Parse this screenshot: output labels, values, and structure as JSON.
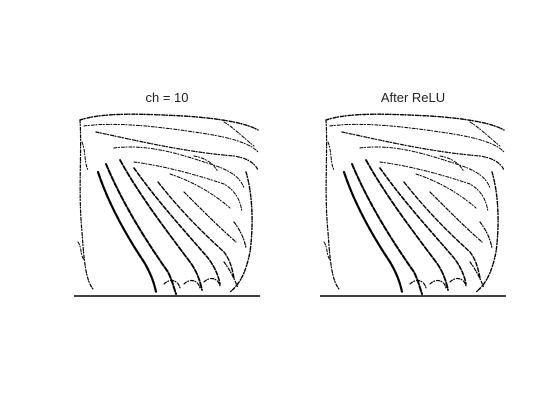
{
  "panels": [
    {
      "title": "ch = 10"
    },
    {
      "title": "After ReLU"
    }
  ],
  "colors": {
    "ink": "#000000",
    "background": "#ffffff"
  }
}
